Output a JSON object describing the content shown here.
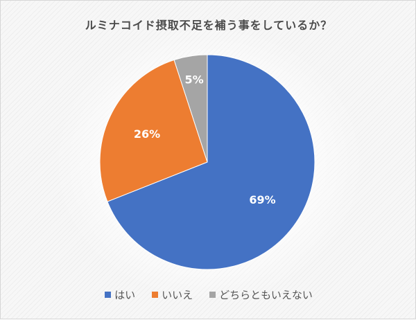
{
  "chart_data": {
    "type": "pie",
    "title": "ルミナコイド摂取不足を補う事をしているか？",
    "categories": [
      "はい",
      "いいえ",
      "どちらともいえない"
    ],
    "values": [
      69,
      26,
      5
    ],
    "labels": [
      "69%",
      "26%",
      "5%"
    ],
    "colors": [
      "#4472c4",
      "#ed7d31",
      "#a5a5a5"
    ],
    "start_angle": "12 o'clock",
    "direction": "clockwise",
    "legend_position": "bottom"
  },
  "legend": {
    "items": [
      {
        "label": "はい",
        "color": "#4472c4"
      },
      {
        "label": "いいえ",
        "color": "#ed7d31"
      },
      {
        "label": "どちらともいえない",
        "color": "#a5a5a5"
      }
    ]
  }
}
